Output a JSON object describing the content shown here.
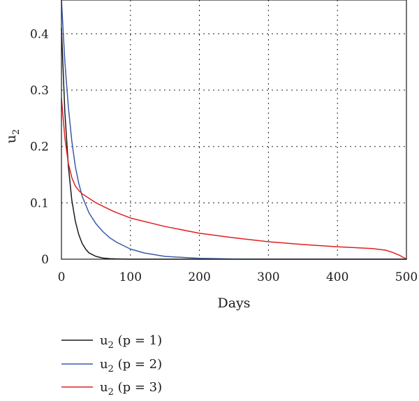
{
  "chart_data": {
    "type": "line",
    "title": "",
    "xlabel": "Days",
    "ylabel": {
      "base": "u",
      "sub": "2"
    },
    "xlim": [
      0,
      500
    ],
    "ylim": [
      0,
      0.46
    ],
    "xticks": [
      0,
      100,
      200,
      300,
      400,
      500
    ],
    "xtick_labels": [
      "0",
      "100",
      "200",
      "300",
      "400",
      "500"
    ],
    "yticks": [
      0,
      0.1,
      0.2,
      0.3,
      0.4
    ],
    "ytick_labels": [
      "0",
      "0.1",
      "0.2",
      "0.3",
      "0.4"
    ],
    "grid": true,
    "legend_position": "below-left",
    "series": [
      {
        "name": "u2 (p = 1)",
        "legend": {
          "base": "u",
          "sub": "2",
          "rest": " (p = 1)"
        },
        "color": "#1a1a1a",
        "x": [
          0,
          5,
          10,
          15,
          20,
          25,
          30,
          35,
          40,
          50,
          60,
          70,
          80,
          100,
          500
        ],
        "y": [
          0.41,
          0.26,
          0.165,
          0.105,
          0.068,
          0.044,
          0.028,
          0.018,
          0.011,
          0.005,
          0.002,
          0.001,
          0.0005,
          0,
          0
        ]
      },
      {
        "name": "u2 (p = 2)",
        "legend": {
          "base": "u",
          "sub": "2",
          "rest": " (p = 2)"
        },
        "color": "#3a5aa8",
        "x": [
          0,
          5,
          10,
          15,
          20,
          25,
          30,
          40,
          50,
          60,
          70,
          80,
          100,
          120,
          150,
          200,
          250,
          300,
          500
        ],
        "y": [
          0.46,
          0.35,
          0.27,
          0.21,
          0.165,
          0.135,
          0.112,
          0.082,
          0.063,
          0.049,
          0.038,
          0.03,
          0.018,
          0.011,
          0.005,
          0.0015,
          0.0003,
          0,
          0
        ]
      },
      {
        "name": "u2 (p = 3)",
        "legend": {
          "base": "u",
          "sub": "2",
          "rest": " (p = 3)"
        },
        "color": "#e02020",
        "x": [
          0,
          5,
          10,
          15,
          20,
          25,
          30,
          40,
          50,
          75,
          100,
          150,
          200,
          250,
          300,
          350,
          400,
          450,
          470,
          480,
          490,
          500
        ],
        "y": [
          0.285,
          0.215,
          0.17,
          0.145,
          0.13,
          0.122,
          0.116,
          0.108,
          0.1,
          0.085,
          0.073,
          0.058,
          0.046,
          0.038,
          0.031,
          0.026,
          0.022,
          0.019,
          0.016,
          0.012,
          0.007,
          0
        ]
      }
    ]
  }
}
